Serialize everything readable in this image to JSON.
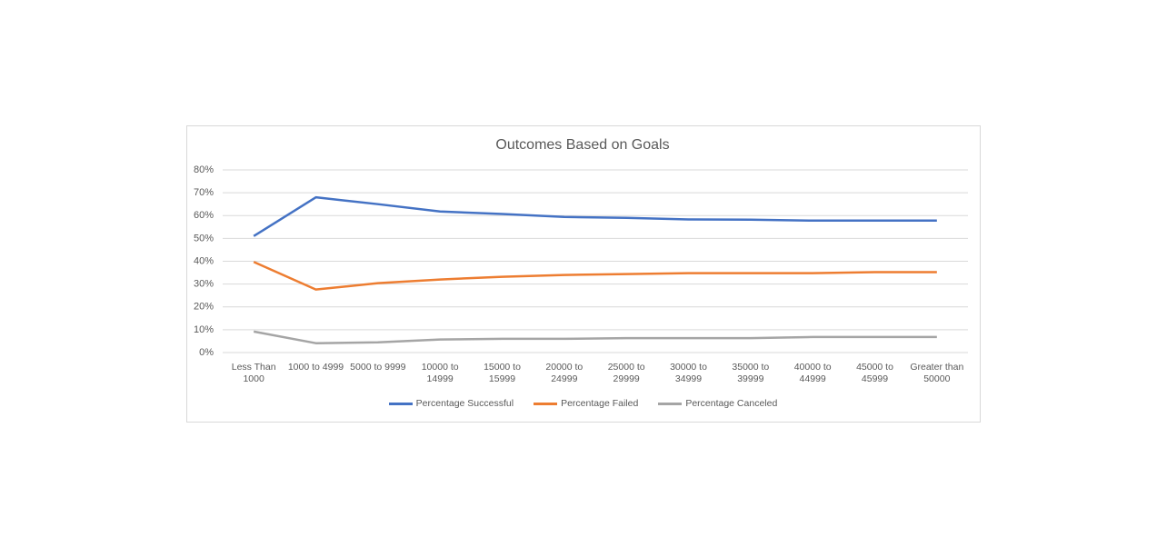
{
  "chart_data": {
    "type": "line",
    "title": "Outcomes Based on Goals",
    "categories": [
      "Less Than 1000",
      "1000 to 4999",
      "5000 to 9999",
      "10000 to 14999",
      "15000 to 15999",
      "20000 to 24999",
      "25000 to 29999",
      "30000 to 34999",
      "35000 to 39999",
      "40000 to 44999",
      "45000 to 45999",
      "Greater than 50000"
    ],
    "series": [
      {
        "name": "Percentage Successful",
        "color": "#4472c4",
        "values": [
          51,
          68,
          65,
          61.8,
          60.7,
          59.4,
          59,
          58.3,
          58.2,
          57.8,
          57.8,
          57.8
        ]
      },
      {
        "name": "Percentage Failed",
        "color": "#ed7d31",
        "values": [
          39.7,
          27.6,
          30.4,
          32,
          33.2,
          34,
          34.4,
          34.8,
          34.8,
          34.8,
          35.2,
          35.2
        ]
      },
      {
        "name": "Percentage Canceled",
        "color": "#a5a5a5",
        "values": [
          9.2,
          4.1,
          4.5,
          5.7,
          6,
          6,
          6.3,
          6.3,
          6.3,
          6.8,
          6.8,
          6.8
        ]
      }
    ],
    "ylim": [
      0,
      80
    ],
    "yticks": [
      {
        "value": 0,
        "label": "0%"
      },
      {
        "value": 10,
        "label": "10%"
      },
      {
        "value": 20,
        "label": "20%"
      },
      {
        "value": 30,
        "label": "30%"
      },
      {
        "value": 40,
        "label": "40%"
      },
      {
        "value": 50,
        "label": "50%"
      },
      {
        "value": 60,
        "label": "60%"
      },
      {
        "value": 70,
        "label": "70%"
      },
      {
        "value": 80,
        "label": "80%"
      }
    ],
    "grid": true
  }
}
